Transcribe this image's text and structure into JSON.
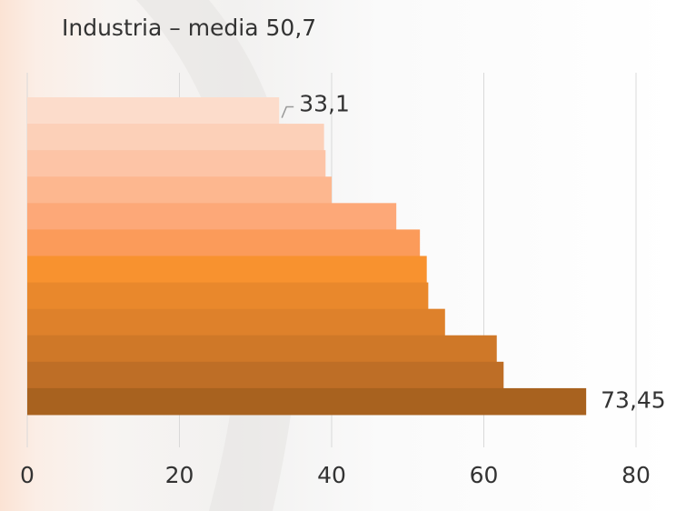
{
  "chart_data": {
    "type": "hbar",
    "title": "Industria – media 50,7",
    "categories": [
      null,
      null,
      null,
      null,
      null,
      null,
      null,
      null,
      null,
      null,
      null,
      null
    ],
    "values": [
      33.1,
      39.0,
      39.2,
      40.0,
      48.5,
      51.6,
      52.5,
      52.7,
      54.9,
      61.7,
      62.6,
      73.45
    ],
    "value_labels": [
      "33,1",
      null,
      null,
      null,
      null,
      null,
      null,
      null,
      null,
      null,
      null,
      "73,45"
    ],
    "colors": [
      "#fcdccb",
      "#fcd0b8",
      "#fdc4a6",
      "#fdb78f",
      "#fda878",
      "#fb9b5a",
      "#f8922f",
      "#e9882c",
      "#de812b",
      "#cf7828",
      "#be6e26",
      "#a8621f"
    ],
    "xlim": [
      0,
      80
    ],
    "xticks": [
      0,
      20,
      40,
      60,
      80
    ],
    "grid": true
  }
}
